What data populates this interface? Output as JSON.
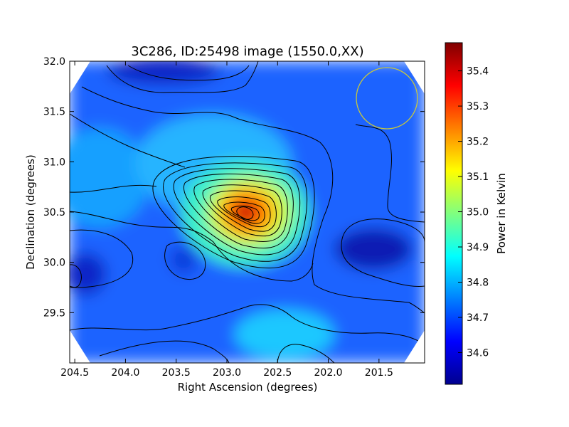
{
  "chart_data": {
    "type": "heatmap",
    "title": "3C286, ID:25498 image (1550.0,XX)",
    "xlabel": "Right Ascension (degrees)",
    "ylabel": "Declination (degrees)",
    "xlim": [
      204.55,
      201.05
    ],
    "ylim": [
      29.0,
      32.0
    ],
    "x_ticks": [
      204.5,
      204.0,
      203.5,
      203.0,
      202.5,
      202.0,
      201.5
    ],
    "x_tick_labels": [
      "204.5",
      "204.0",
      "203.5",
      "203.0",
      "202.5",
      "202.0",
      "201.5"
    ],
    "y_ticks": [
      29.5,
      30.0,
      30.5,
      31.0,
      31.5,
      32.0
    ],
    "y_tick_labels": [
      "29.5",
      "30.0",
      "30.5",
      "31.0",
      "31.5",
      "32.0"
    ],
    "colorbar": {
      "label": "Power in Kelvin",
      "range": [
        34.51,
        35.48
      ],
      "ticks": [
        34.6,
        34.7,
        34.8,
        34.9,
        35.0,
        35.1,
        35.2,
        35.3,
        35.4
      ],
      "tick_labels": [
        "34.6",
        "34.7",
        "34.8",
        "34.9",
        "35.0",
        "35.1",
        "35.2",
        "35.3",
        "35.4"
      ],
      "colormap": "jet"
    },
    "peak": {
      "ra": 202.8,
      "dec": 30.5,
      "value": 35.47
    },
    "circle_marker": {
      "ra": 201.45,
      "dec": 31.63,
      "radius_deg": 0.3,
      "color": "#c8c83c"
    },
    "grid": false,
    "legend": "none"
  }
}
